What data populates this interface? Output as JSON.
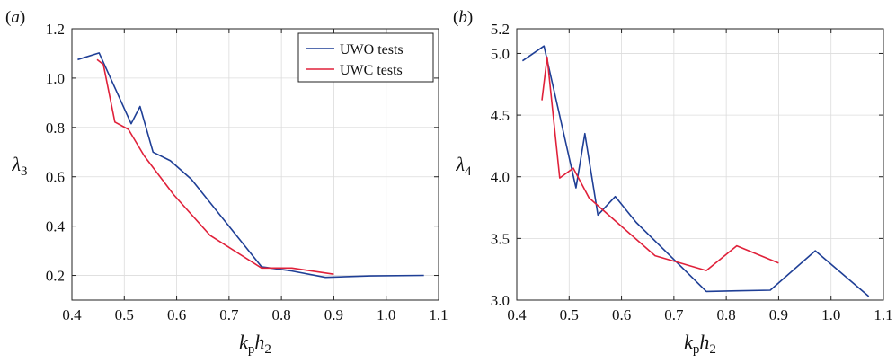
{
  "colors": {
    "uwo": "#1f3f96",
    "uwc": "#e0213a"
  },
  "chart_data": [
    {
      "panel_label": "(a)",
      "type": "line",
      "xlabel": "k_p h_2",
      "ylabel": "λ_3",
      "xlim": [
        0.4,
        1.1
      ],
      "ylim": [
        0.1,
        1.2
      ],
      "xticks": [
        "0.4",
        "0.5",
        "0.6",
        "0.7",
        "0.8",
        "0.9",
        "1.0",
        "1.1"
      ],
      "xtick_values": [
        0.4,
        0.5,
        0.6,
        0.7,
        0.8,
        0.9,
        1.0,
        1.1
      ],
      "yticks": [
        "0.2",
        "0.4",
        "0.6",
        "0.8",
        "1.0",
        "1.2"
      ],
      "ytick_values": [
        0.2,
        0.4,
        0.6,
        0.8,
        1.0,
        1.2
      ],
      "grid": true,
      "legend_position": "top-right",
      "series": [
        {
          "name": "UWO tests",
          "color_key": "uwo",
          "x": [
            0.411,
            0.452,
            0.513,
            0.53,
            0.555,
            0.588,
            0.628,
            0.762,
            0.82,
            0.884,
            0.97,
            1.072
          ],
          "y": [
            1.075,
            1.102,
            0.815,
            0.885,
            0.7,
            0.665,
            0.59,
            0.235,
            0.218,
            0.192,
            0.198,
            0.2
          ]
        },
        {
          "name": "UWC tests",
          "color_key": "uwc",
          "x": [
            0.448,
            0.46,
            0.482,
            0.508,
            0.538,
            0.594,
            0.664,
            0.762,
            0.82,
            0.9
          ],
          "y": [
            1.075,
            1.055,
            0.822,
            0.792,
            0.685,
            0.528,
            0.362,
            0.23,
            0.23,
            0.205
          ]
        }
      ]
    },
    {
      "panel_label": "(b)",
      "type": "line",
      "xlabel": "k_p h_2",
      "ylabel": "λ_4",
      "xlim": [
        0.4,
        1.1
      ],
      "ylim": [
        3.0,
        5.2
      ],
      "xticks": [
        "0.4",
        "0.5",
        "0.6",
        "0.7",
        "0.8",
        "0.9",
        "1.0",
        "1.1"
      ],
      "xtick_values": [
        0.4,
        0.5,
        0.6,
        0.7,
        0.8,
        0.9,
        1.0,
        1.1
      ],
      "yticks": [
        "3.0",
        "3.5",
        "4.0",
        "4.5",
        "5.0",
        "5.2"
      ],
      "ytick_values": [
        3.0,
        3.5,
        4.0,
        4.5,
        5.0,
        5.2
      ],
      "grid": true,
      "series": [
        {
          "name": "UWO tests",
          "color_key": "uwo",
          "x": [
            0.411,
            0.452,
            0.513,
            0.53,
            0.555,
            0.588,
            0.628,
            0.762,
            0.82,
            0.884,
            0.97,
            1.072
          ],
          "y": [
            4.94,
            5.06,
            3.91,
            4.35,
            3.69,
            3.84,
            3.63,
            3.07,
            3.075,
            3.08,
            3.4,
            3.03
          ]
        },
        {
          "name": "UWC tests",
          "color_key": "uwc",
          "x": [
            0.448,
            0.458,
            0.482,
            0.508,
            0.538,
            0.594,
            0.664,
            0.762,
            0.82,
            0.9
          ],
          "y": [
            4.62,
            4.97,
            3.99,
            4.07,
            3.83,
            3.62,
            3.36,
            3.24,
            3.44,
            3.3
          ]
        }
      ]
    }
  ]
}
